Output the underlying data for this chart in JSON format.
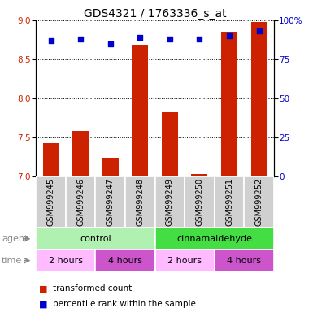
{
  "title": "GDS4321 / 1763336_s_at",
  "samples": [
    "GSM999245",
    "GSM999246",
    "GSM999247",
    "GSM999248",
    "GSM999249",
    "GSM999250",
    "GSM999251",
    "GSM999252"
  ],
  "bar_values": [
    7.43,
    7.58,
    7.23,
    8.68,
    7.82,
    7.03,
    8.85,
    8.98
  ],
  "percentile_values": [
    87,
    88,
    85,
    89,
    88,
    88,
    90,
    93
  ],
  "bar_color": "#cc2200",
  "percentile_color": "#0000cc",
  "ylim_left": [
    7,
    9
  ],
  "ylim_right": [
    0,
    100
  ],
  "yticks_left": [
    7,
    7.5,
    8,
    8.5,
    9
  ],
  "yticks_right": [
    0,
    25,
    50,
    75,
    100
  ],
  "ytick_labels_right": [
    "0",
    "25",
    "50",
    "75",
    "100%"
  ],
  "agent_groups": [
    {
      "label": "control",
      "start": 0,
      "end": 4,
      "color": "#b0f0b0"
    },
    {
      "label": "cinnamaldehyde",
      "start": 4,
      "end": 8,
      "color": "#44dd44"
    }
  ],
  "time_groups": [
    {
      "label": "2 hours",
      "start": 0,
      "end": 2,
      "color": "#ffbbff"
    },
    {
      "label": "4 hours",
      "start": 2,
      "end": 4,
      "color": "#cc55cc"
    },
    {
      "label": "2 hours",
      "start": 4,
      "end": 6,
      "color": "#ffbbff"
    },
    {
      "label": "4 hours",
      "start": 6,
      "end": 8,
      "color": "#cc55cc"
    }
  ],
  "legend_bar_label": "transformed count",
  "legend_pct_label": "percentile rank within the sample",
  "agent_label": "agent",
  "time_label": "time",
  "title_fontsize": 10,
  "tick_fontsize": 7.5,
  "label_fontsize": 8,
  "sample_fontsize": 7,
  "row_label_fontsize": 8,
  "legend_fontsize": 7.5
}
